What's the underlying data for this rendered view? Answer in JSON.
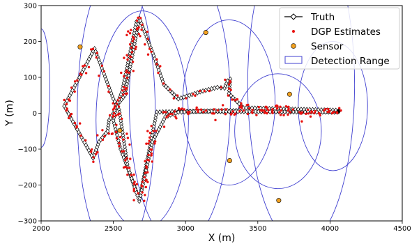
{
  "chart_data": {
    "type": "scatter",
    "xlabel": "X (m)",
    "ylabel": "Y (m)",
    "xlim": [
      2000,
      4500
    ],
    "ylim": [
      -300,
      300
    ],
    "xticks": [
      2000,
      2500,
      3000,
      3500,
      4000,
      4500
    ],
    "yticks": [
      -300,
      -200,
      -100,
      0,
      100,
      200,
      300
    ],
    "grid": false,
    "legend_position": "top-right",
    "legend": [
      {
        "label": "Truth",
        "marker": "line-diamond",
        "color": "#000000"
      },
      {
        "label": "DGP Estimates",
        "marker": "dot",
        "color": "#e8110f"
      },
      {
        "label": "Sensor",
        "marker": "circle",
        "color": "#f0a020"
      },
      {
        "label": "Detection Range",
        "marker": "rect",
        "color": "#4040d0"
      }
    ],
    "truth_paths": [
      [
        [
          4060,
          5
        ],
        [
          3450,
          8
        ],
        [
          2950,
          5
        ],
        [
          2800,
          3
        ],
        [
          2680,
          -240
        ],
        [
          2550,
          -100
        ],
        [
          2500,
          -20
        ],
        [
          2520,
          20
        ],
        [
          2580,
          50
        ],
        [
          2680,
          265
        ],
        [
          2780,
          160
        ],
        [
          2850,
          80
        ],
        [
          2950,
          40
        ],
        [
          3120,
          62
        ],
        [
          3220,
          72
        ],
        [
          3270,
          70
        ],
        [
          3290,
          90
        ],
        [
          3310,
          95
        ],
        [
          3300,
          55
        ],
        [
          3400,
          15
        ],
        [
          4060,
          8
        ]
      ],
      [
        [
          2660,
          255
        ],
        [
          2560,
          60
        ],
        [
          2500,
          0
        ],
        [
          2470,
          -20
        ],
        [
          2460,
          -50
        ],
        [
          2400,
          -80
        ],
        [
          2360,
          -125
        ],
        [
          2160,
          20
        ],
        [
          2370,
          180
        ],
        [
          2500,
          40
        ],
        [
          2540,
          10
        ],
        [
          2600,
          -150
        ],
        [
          2680,
          -245
        ],
        [
          2770,
          -80
        ],
        [
          2860,
          -10
        ],
        [
          2950,
          3
        ],
        [
          3100,
          5
        ],
        [
          4050,
          3
        ]
      ]
    ],
    "sensors": [
      {
        "x": 2270,
        "y": 185
      },
      {
        "x": 3140,
        "y": 225
      },
      {
        "x": 2545,
        "y": -48
      },
      {
        "x": 3720,
        "y": 53
      },
      {
        "x": 3305,
        "y": -132
      },
      {
        "x": 3645,
        "y": -243
      }
    ],
    "detection_ranges": [
      {
        "cx": 2000,
        "cy": 70,
        "rx": 60,
        "ry": 165
      },
      {
        "cx": 2520,
        "cy": 0,
        "rx": 270,
        "ry": 400
      },
      {
        "cx": 2960,
        "cy": 30,
        "rx": 350,
        "ry": 400
      },
      {
        "cx": 2700,
        "cy": -20,
        "rx": 320,
        "ry": 305
      },
      {
        "cx": 3300,
        "cy": 30,
        "rx": 320,
        "ry": 230
      },
      {
        "cx": 3640,
        "cy": -50,
        "rx": 300,
        "ry": 160
      },
      {
        "cx": 4020,
        "cy": 20,
        "rx": 240,
        "ry": 180
      },
      {
        "cx": 3800,
        "cy": 80,
        "rx": 370,
        "ry": 450
      }
    ]
  }
}
